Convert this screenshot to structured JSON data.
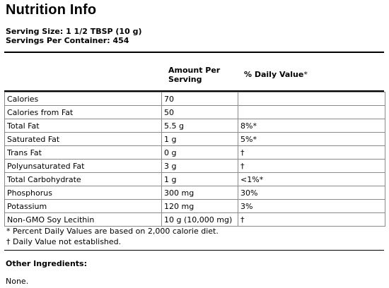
{
  "title": "Nutrition Info",
  "serving_size": "Serving Size: 1 1/2 TBSP (10 g)",
  "servings_per_container": "Servings Per Container: 454",
  "columns": {
    "amount": "Amount Per Serving",
    "daily_value": "% Daily Value",
    "daily_value_mark": "*"
  },
  "rows": [
    {
      "name": "Calories",
      "amount": "70",
      "dv": ""
    },
    {
      "name": "Calories from Fat",
      "amount": "50",
      "dv": ""
    },
    {
      "name": "Total Fat",
      "amount": "5.5 g",
      "dv": "8%*"
    },
    {
      "name": "Saturated Fat",
      "amount": "1 g",
      "dv": "5%*"
    },
    {
      "name": "Trans Fat",
      "amount": "0 g",
      "dv": "†"
    },
    {
      "name": "Polyunsaturated Fat",
      "amount": "3 g",
      "dv": "†"
    },
    {
      "name": "Total Carbohydrate",
      "amount": "1 g",
      "dv": "<1%*"
    },
    {
      "name": "Phosphorus",
      "amount": "300 mg",
      "dv": "30%"
    },
    {
      "name": "Potassium",
      "amount": "120 mg",
      "dv": "3%"
    },
    {
      "name": "Non-GMO Soy Lecithin",
      "amount": "10 g (10,000 mg)",
      "dv": "†"
    }
  ],
  "footnotes": [
    "* Percent Daily Values are based on 2,000 calorie diet.",
    "† Daily Value not established."
  ],
  "other_ingredients": {
    "heading": "Other Ingredients:",
    "value": "None."
  }
}
